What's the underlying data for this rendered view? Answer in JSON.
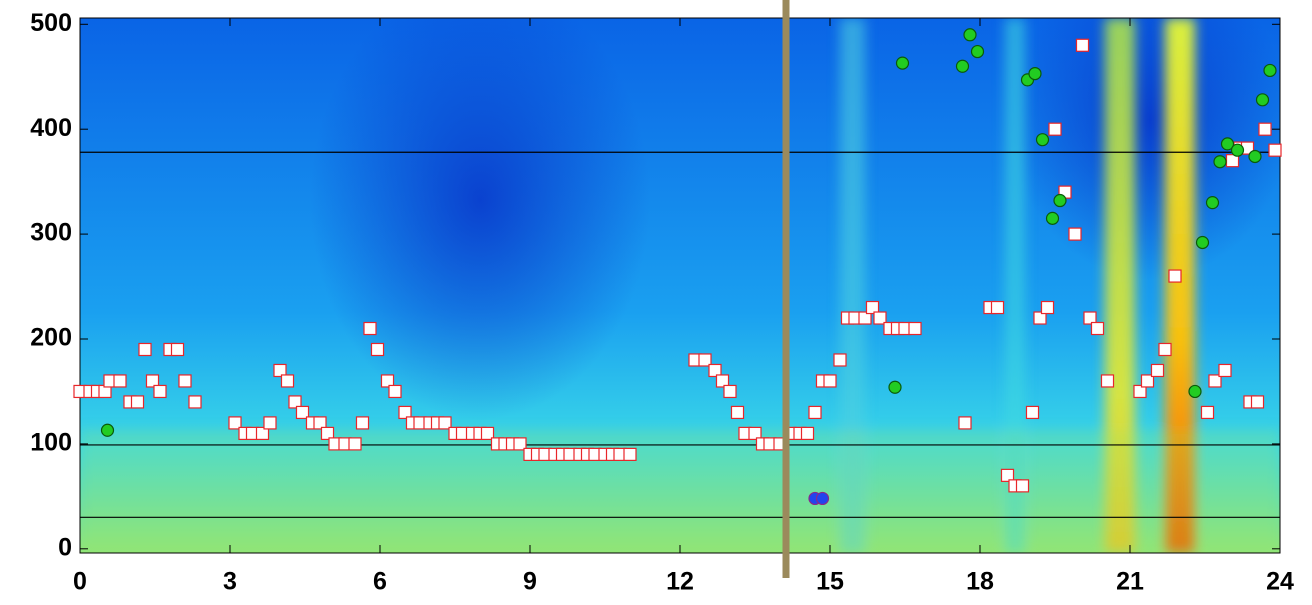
{
  "chart_data": {
    "type": "scatter",
    "xlim": [
      0,
      24
    ],
    "ylim": [
      -4,
      506
    ],
    "xticks": [
      0,
      3,
      6,
      9,
      12,
      15,
      18,
      21,
      24
    ],
    "yticks": [
      0,
      100,
      200,
      300,
      400,
      500
    ],
    "hlines": [
      378,
      99,
      30
    ],
    "hline_color": "#000000",
    "vline": 14.12,
    "vline_color": "#9b8a5c",
    "series": [
      {
        "marker": "square",
        "color": "#ffffff",
        "edgecolor": "#e8262a",
        "x": [
          0,
          0.2,
          0.35,
          0.5,
          0.6,
          0.8,
          1.0,
          1.15,
          1.3,
          1.45,
          1.6,
          1.8,
          1.95,
          2.1,
          2.3,
          3.1,
          3.3,
          3.45,
          3.65,
          3.8,
          4.0,
          4.15,
          4.3,
          4.45,
          4.65,
          4.8,
          4.95,
          5.1,
          5.3,
          5.5,
          5.65,
          5.8,
          5.95,
          6.15,
          6.3,
          6.5,
          6.65,
          6.8,
          7.0,
          7.15,
          7.3,
          7.5,
          7.65,
          7.85,
          8.0,
          8.15,
          8.35,
          8.5,
          8.65,
          8.8,
          9.0,
          9.15,
          9.3,
          9.5,
          9.65,
          9.8,
          10.0,
          10.15,
          10.3,
          10.5,
          10.65,
          10.8,
          11.0,
          12.3,
          12.5,
          12.7,
          12.85,
          13.0,
          13.15,
          13.3,
          13.5,
          13.65,
          13.8,
          14.0,
          14.2,
          14.4,
          14.55,
          14.7,
          14.85,
          15.0,
          15.2,
          15.35,
          15.5,
          15.7,
          15.85,
          16.0,
          16.2,
          16.35,
          16.5,
          16.7,
          17.7,
          18.2,
          18.35,
          18.55,
          18.7,
          18.85,
          19.05,
          19.2,
          19.35,
          19.5,
          19.7,
          19.9,
          20.05,
          20.2,
          20.35,
          20.55,
          21.2,
          21.35,
          21.55,
          21.7,
          21.9,
          22.55,
          22.7,
          22.9,
          23.05,
          23.2,
          23.35,
          23.4,
          23.55,
          23.7,
          23.9
        ],
        "values": [
          150,
          150,
          150,
          150,
          160,
          160,
          140,
          140,
          190,
          160,
          150,
          190,
          190,
          160,
          140,
          120,
          110,
          110,
          110,
          120,
          170,
          160,
          140,
          130,
          120,
          120,
          110,
          100,
          100,
          100,
          120,
          210,
          190,
          160,
          150,
          130,
          120,
          120,
          120,
          120,
          120,
          110,
          110,
          110,
          110,
          110,
          100,
          100,
          100,
          100,
          90,
          90,
          90,
          90,
          90,
          90,
          90,
          90,
          90,
          90,
          90,
          90,
          90,
          180,
          180,
          170,
          160,
          150,
          130,
          110,
          110,
          100,
          100,
          100,
          110,
          110,
          110,
          130,
          160,
          160,
          180,
          220,
          220,
          220,
          230,
          220,
          210,
          210,
          210,
          210,
          120,
          230,
          230,
          70,
          60,
          60,
          130,
          220,
          230,
          400,
          340,
          300,
          480,
          220,
          210,
          160,
          150,
          160,
          170,
          190,
          260,
          130,
          160,
          170,
          370,
          382,
          382,
          140,
          140,
          400,
          380
        ]
      },
      {
        "marker": "circle",
        "color": "#22cc22",
        "edgecolor": "#0a5a0a",
        "x": [
          0.55,
          16.3,
          16.45,
          17.65,
          17.8,
          17.95,
          18.95,
          19.1,
          19.25,
          19.45,
          19.6,
          22.3,
          22.45,
          22.65,
          22.8,
          22.95,
          23.15,
          23.5,
          23.65,
          23.8
        ],
        "values": [
          113,
          154,
          463,
          460,
          490,
          474,
          447,
          453,
          390,
          315,
          332,
          150,
          292,
          330,
          369,
          386,
          380,
          374,
          428,
          456
        ]
      },
      {
        "marker": "circle",
        "color": "#2244ee",
        "edgecolor": "#8a2a8a",
        "x": [
          14.7,
          14.85
        ],
        "values": [
          48,
          48
        ]
      }
    ]
  }
}
